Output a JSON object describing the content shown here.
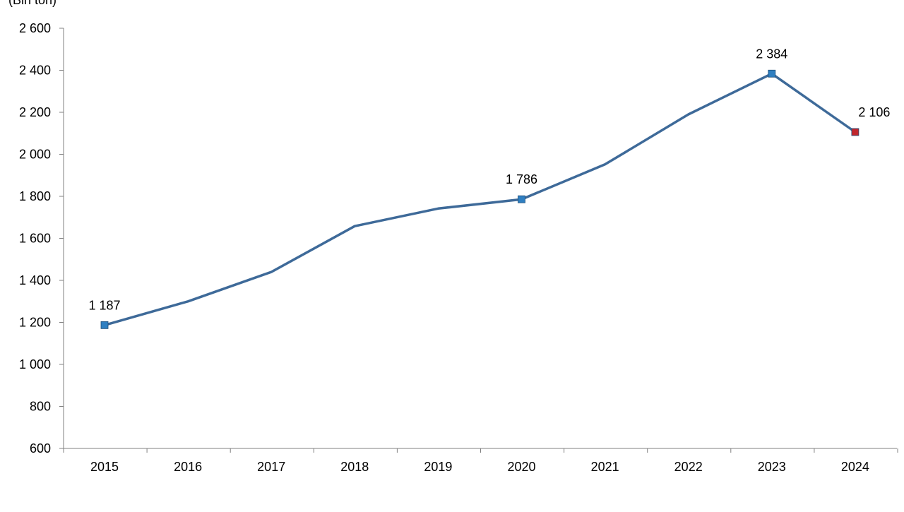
{
  "chart_data": {
    "type": "line",
    "title": "",
    "xlabel": "",
    "ylabel": "",
    "unit_label": "(Bin ton)",
    "categories": [
      "2015",
      "2016",
      "2017",
      "2018",
      "2019",
      "2020",
      "2021",
      "2022",
      "2023",
      "2024"
    ],
    "series": [
      {
        "values": [
          1187,
          1300,
          1440,
          1658,
          1742,
          1786,
          1952,
          2190,
          2384,
          2106
        ],
        "color": "#3E6A99"
      }
    ],
    "data_labels": [
      {
        "category": "2015",
        "text": "1 187"
      },
      {
        "category": "2020",
        "text": "1 786"
      },
      {
        "category": "2023",
        "text": "2 384"
      },
      {
        "category": "2024",
        "text": "2 106"
      }
    ],
    "markers": [
      {
        "category": "2015",
        "color": "#2F7FC1"
      },
      {
        "category": "2020",
        "color": "#2F7FC1"
      },
      {
        "category": "2023",
        "color": "#2F7FC1"
      },
      {
        "category": "2024",
        "color": "#C0262C"
      }
    ],
    "y_ticks": [
      "600",
      "800",
      "1 000",
      "1 200",
      "1 400",
      "1 600",
      "1 800",
      "2 000",
      "2 200",
      "2 400",
      "2 600"
    ],
    "y_tick_values": [
      600,
      800,
      1000,
      1200,
      1400,
      1600,
      1800,
      2000,
      2200,
      2400,
      2600
    ],
    "ylim": [
      600,
      2600
    ],
    "grid": false,
    "legend": "none"
  }
}
